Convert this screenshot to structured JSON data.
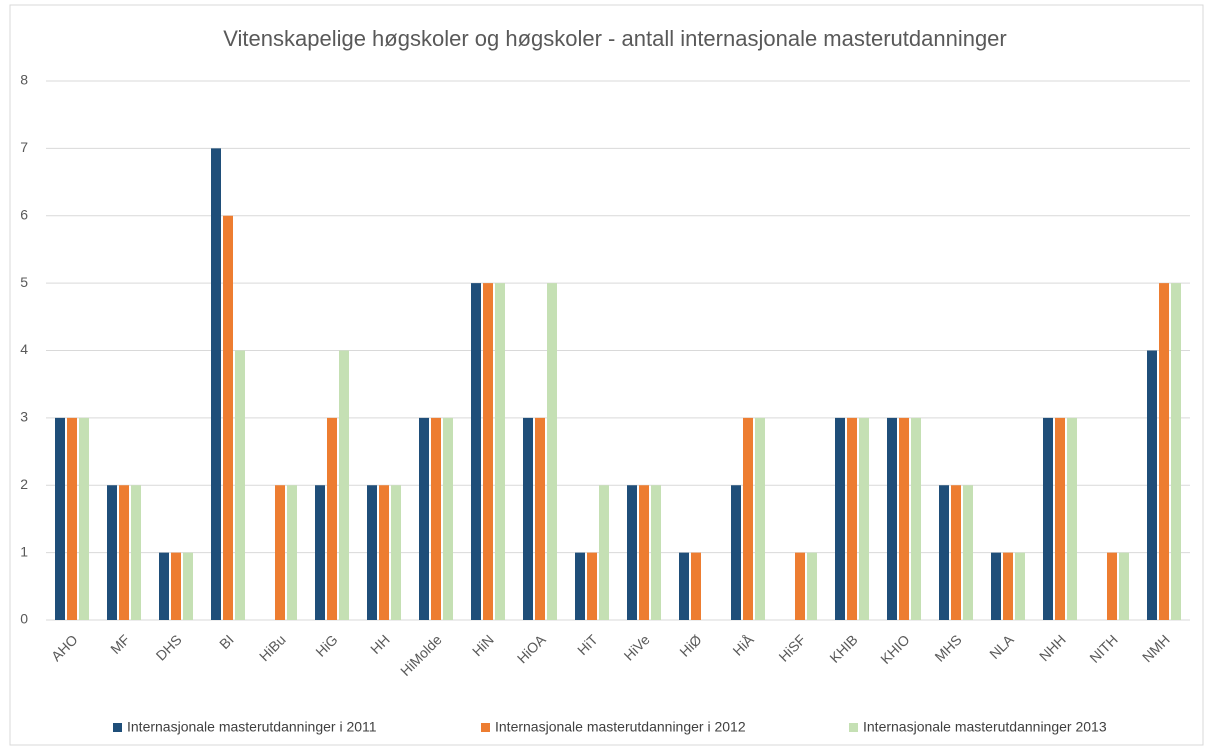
{
  "chart_data": {
    "type": "bar",
    "title": "Vitenskapelige høgskoler og høgskoler - antall internasjonale masterutdanninger",
    "categories": [
      "AHO",
      "MF",
      "DHS",
      "BI",
      "HiBu",
      "HiG",
      "HH",
      "HiMolde",
      "HiN",
      "HiOA",
      "HiT",
      "HiVe",
      "HiØ",
      "HiÅ",
      "HiSF",
      "KHIB",
      "KHIO",
      "MHS",
      "NLA",
      "NHH",
      "NITH",
      "NMH"
    ],
    "series": [
      {
        "name": "Internasjonale masterutdanninger i 2011",
        "color": "#1f4e79",
        "values": [
          3,
          2,
          1,
          7,
          0,
          2,
          2,
          3,
          5,
          3,
          1,
          2,
          1,
          2,
          0,
          3,
          3,
          2,
          1,
          3,
          0,
          4
        ]
      },
      {
        "name": "Internasjonale masterutdanninger i 2012",
        "color": "#ed7d31",
        "values": [
          3,
          2,
          1,
          6,
          2,
          3,
          2,
          3,
          5,
          3,
          1,
          2,
          1,
          3,
          1,
          3,
          3,
          2,
          1,
          3,
          1,
          5
        ]
      },
      {
        "name": "Internasjonale masterutdanninger 2013",
        "color": "#c5e0b4",
        "values": [
          3,
          2,
          1,
          4,
          2,
          4,
          2,
          3,
          5,
          5,
          2,
          2,
          0,
          3,
          1,
          3,
          3,
          2,
          1,
          3,
          1,
          5
        ]
      }
    ],
    "ylim": [
      0,
      8
    ],
    "yticks": [
      0,
      1,
      2,
      3,
      4,
      5,
      6,
      7,
      8
    ],
    "grid": true,
    "legend": "bottom"
  }
}
